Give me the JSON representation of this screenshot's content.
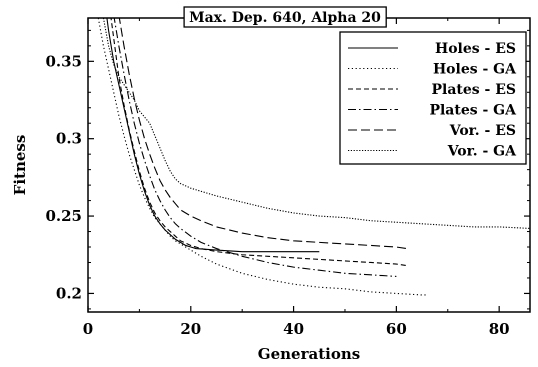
{
  "chart_data": {
    "type": "line",
    "title": "Max. Dep. 640, Alpha 20",
    "xlabel": "Generations",
    "ylabel": "Fitness",
    "xlim": [
      0,
      86
    ],
    "ylim": [
      0.188,
      0.378
    ],
    "xticks": [
      0,
      20,
      40,
      60,
      80
    ],
    "yticks": [
      0.2,
      0.25,
      0.3,
      0.35
    ],
    "ytick_labels": [
      "0.2",
      "0.25",
      "0.3",
      "0.35"
    ],
    "grid": false,
    "legend_position": "top-right",
    "series": [
      {
        "name": "Holes - ES",
        "dash": "solid",
        "points": [
          [
            3,
            0.395
          ],
          [
            4,
            0.37
          ],
          [
            5,
            0.35
          ],
          [
            6,
            0.335
          ],
          [
            7,
            0.32
          ],
          [
            8,
            0.305
          ],
          [
            9,
            0.29
          ],
          [
            10,
            0.277
          ],
          [
            11,
            0.266
          ],
          [
            12,
            0.257
          ],
          [
            13,
            0.25
          ],
          [
            14,
            0.245
          ],
          [
            15,
            0.241
          ],
          [
            16,
            0.238
          ],
          [
            17,
            0.235
          ],
          [
            18,
            0.233
          ],
          [
            19,
            0.231
          ],
          [
            20,
            0.23
          ],
          [
            21,
            0.229
          ],
          [
            25,
            0.228
          ],
          [
            30,
            0.227
          ],
          [
            35,
            0.227
          ],
          [
            40,
            0.227
          ],
          [
            45,
            0.227
          ]
        ]
      },
      {
        "name": "Holes - GA",
        "dash": "dotted",
        "points": [
          [
            2,
            0.378
          ],
          [
            3,
            0.36
          ],
          [
            4,
            0.345
          ],
          [
            5,
            0.33
          ],
          [
            6,
            0.315
          ],
          [
            7,
            0.302
          ],
          [
            8,
            0.29
          ],
          [
            9,
            0.28
          ],
          [
            10,
            0.27
          ],
          [
            11,
            0.262
          ],
          [
            12,
            0.255
          ],
          [
            13,
            0.249
          ],
          [
            14,
            0.245
          ],
          [
            15,
            0.241
          ],
          [
            16,
            0.237
          ],
          [
            17,
            0.234
          ],
          [
            18,
            0.232
          ],
          [
            20,
            0.228
          ],
          [
            22,
            0.224
          ],
          [
            25,
            0.219
          ],
          [
            30,
            0.213
          ],
          [
            35,
            0.209
          ],
          [
            40,
            0.206
          ],
          [
            45,
            0.204
          ],
          [
            50,
            0.203
          ],
          [
            55,
            0.201
          ],
          [
            60,
            0.2
          ],
          [
            65,
            0.199
          ],
          [
            66,
            0.199
          ]
        ]
      },
      {
        "name": "Plates - ES",
        "dash": "dashed",
        "points": [
          [
            4,
            0.39
          ],
          [
            5,
            0.365
          ],
          [
            6,
            0.34
          ],
          [
            7,
            0.322
          ],
          [
            8,
            0.306
          ],
          [
            9,
            0.292
          ],
          [
            10,
            0.279
          ],
          [
            11,
            0.268
          ],
          [
            12,
            0.259
          ],
          [
            13,
            0.252
          ],
          [
            14,
            0.247
          ],
          [
            15,
            0.243
          ],
          [
            16,
            0.24
          ],
          [
            17,
            0.237
          ],
          [
            18,
            0.234
          ],
          [
            20,
            0.231
          ],
          [
            22,
            0.229
          ],
          [
            25,
            0.227
          ],
          [
            30,
            0.225
          ],
          [
            35,
            0.224
          ],
          [
            40,
            0.223
          ],
          [
            45,
            0.222
          ],
          [
            50,
            0.221
          ],
          [
            55,
            0.22
          ],
          [
            60,
            0.219
          ],
          [
            62,
            0.218
          ]
        ]
      },
      {
        "name": "Plates - GA",
        "dash": "dashdot",
        "points": [
          [
            5,
            0.38
          ],
          [
            6,
            0.36
          ],
          [
            7,
            0.342
          ],
          [
            8,
            0.325
          ],
          [
            9,
            0.31
          ],
          [
            10,
            0.297
          ],
          [
            11,
            0.286
          ],
          [
            12,
            0.276
          ],
          [
            13,
            0.267
          ],
          [
            14,
            0.26
          ],
          [
            15,
            0.254
          ],
          [
            16,
            0.249
          ],
          [
            17,
            0.245
          ],
          [
            18,
            0.242
          ],
          [
            20,
            0.237
          ],
          [
            22,
            0.233
          ],
          [
            25,
            0.229
          ],
          [
            30,
            0.224
          ],
          [
            35,
            0.22
          ],
          [
            40,
            0.217
          ],
          [
            45,
            0.215
          ],
          [
            50,
            0.213
          ],
          [
            55,
            0.212
          ],
          [
            60,
            0.211
          ]
        ]
      },
      {
        "name": "Vor. - ES",
        "dash": "longdash",
        "points": [
          [
            6,
            0.38
          ],
          [
            7,
            0.36
          ],
          [
            8,
            0.342
          ],
          [
            9,
            0.326
          ],
          [
            10,
            0.312
          ],
          [
            11,
            0.3
          ],
          [
            12,
            0.29
          ],
          [
            13,
            0.281
          ],
          [
            14,
            0.273
          ],
          [
            15,
            0.267
          ],
          [
            16,
            0.262
          ],
          [
            17,
            0.258
          ],
          [
            18,
            0.254
          ],
          [
            20,
            0.25
          ],
          [
            22,
            0.247
          ],
          [
            25,
            0.243
          ],
          [
            30,
            0.239
          ],
          [
            35,
            0.236
          ],
          [
            40,
            0.234
          ],
          [
            45,
            0.233
          ],
          [
            50,
            0.232
          ],
          [
            55,
            0.231
          ],
          [
            60,
            0.23
          ],
          [
            62,
            0.229
          ]
        ]
      },
      {
        "name": "Vor. - GA",
        "dash": "densedot",
        "points": [
          [
            3,
            0.378
          ],
          [
            4,
            0.36
          ],
          [
            5,
            0.348
          ],
          [
            6,
            0.34
          ],
          [
            7,
            0.335
          ],
          [
            8,
            0.33
          ],
          [
            9,
            0.325
          ],
          [
            10,
            0.318
          ],
          [
            11,
            0.314
          ],
          [
            12,
            0.31
          ],
          [
            13,
            0.302
          ],
          [
            14,
            0.294
          ],
          [
            15,
            0.286
          ],
          [
            16,
            0.279
          ],
          [
            17,
            0.274
          ],
          [
            18,
            0.271
          ],
          [
            20,
            0.268
          ],
          [
            22,
            0.266
          ],
          [
            25,
            0.263
          ],
          [
            30,
            0.259
          ],
          [
            35,
            0.255
          ],
          [
            40,
            0.252
          ],
          [
            45,
            0.25
          ],
          [
            50,
            0.249
          ],
          [
            55,
            0.247
          ],
          [
            60,
            0.246
          ],
          [
            65,
            0.245
          ],
          [
            70,
            0.244
          ],
          [
            75,
            0.243
          ],
          [
            80,
            0.243
          ],
          [
            86,
            0.242
          ]
        ]
      }
    ]
  }
}
